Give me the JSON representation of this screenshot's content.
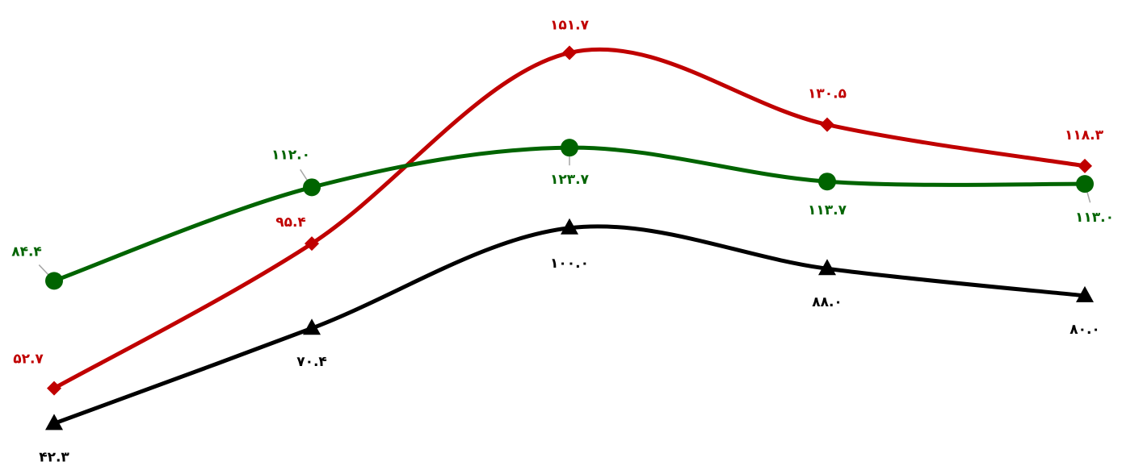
{
  "chart_data": {
    "type": "line",
    "smooth": true,
    "title": "",
    "xlabel": "",
    "ylabel": "",
    "axes_visible": false,
    "grid": false,
    "legend": "none",
    "x": [
      1,
      2,
      3,
      4,
      5
    ],
    "ylim": [
      40,
      153
    ],
    "series": [
      {
        "color": "#c00000",
        "marker": "diamond",
        "values": [
          52.7,
          95.4,
          151.7,
          130.5,
          118.3
        ],
        "labels": [
          "۵۲.۷",
          "۹۵.۴",
          "۱۵۱.۷",
          "۱۳۰.۵",
          "۱۱۸.۳"
        ]
      },
      {
        "color": "#006400",
        "marker": "circle",
        "values": [
          84.4,
          112.0,
          123.7,
          113.7,
          113.0
        ],
        "labels": [
          "۸۴.۴",
          "۱۱۲.۰",
          "۱۲۳.۷",
          "۱۱۳.۷",
          "۱۱۳.۰"
        ]
      },
      {
        "color": "#000000",
        "marker": "triangle",
        "values": [
          42.3,
          70.4,
          100.0,
          88.0,
          80.0
        ],
        "labels": [
          "۴۲.۳",
          "۷۰.۴",
          "۱۰۰.۰",
          "۸۸.۰",
          "۸۰.۰"
        ]
      }
    ]
  }
}
